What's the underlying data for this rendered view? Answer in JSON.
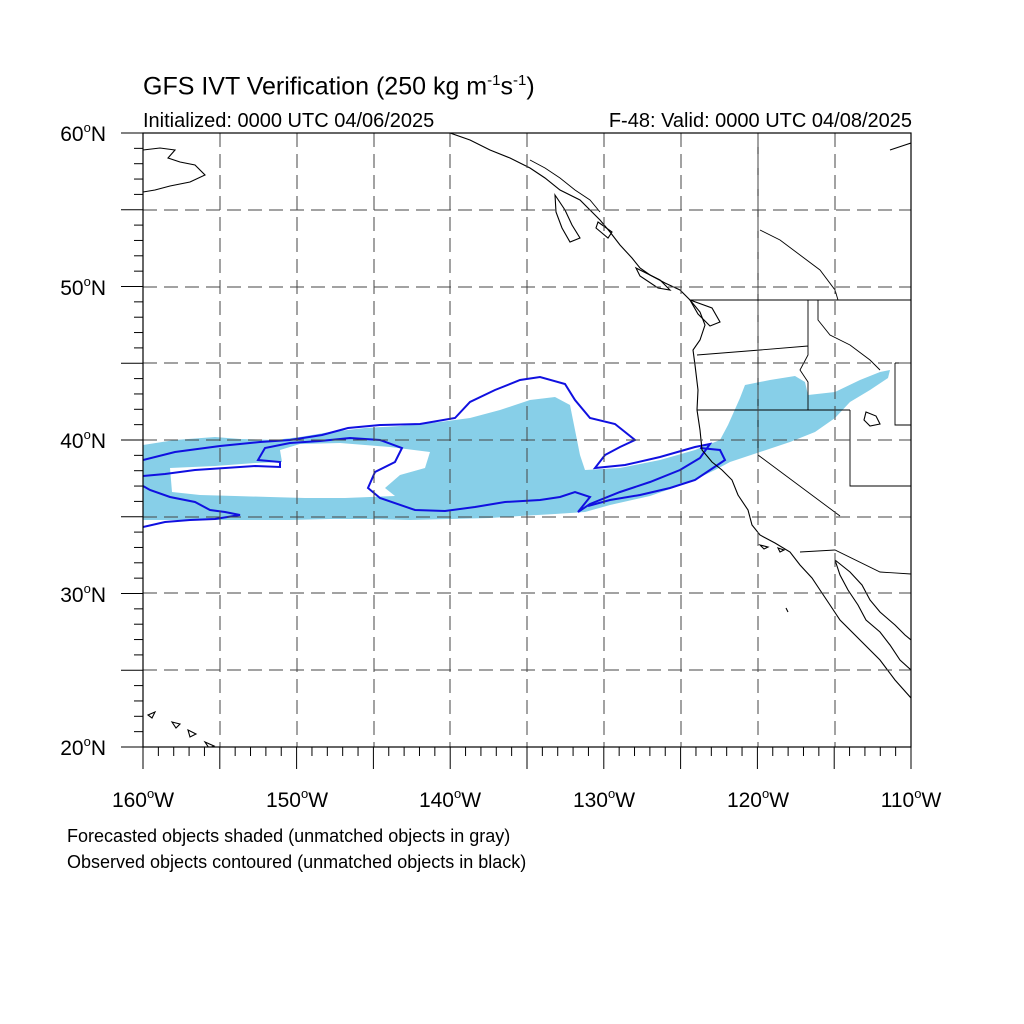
{
  "title": {
    "main": "GFS IVT Verification (250 kg m",
    "exp1": "-1",
    "mid": "s",
    "exp2": "-1",
    "end": ")"
  },
  "initialized": "Initialized: 0000 UTC 04/06/2025",
  "valid": "F-48: Valid: 0000 UTC 04/08/2025",
  "lat_labels": [
    {
      "value": "60",
      "suffix": "N"
    },
    {
      "value": "50",
      "suffix": "N"
    },
    {
      "value": "40",
      "suffix": "N"
    },
    {
      "value": "30",
      "suffix": "N"
    },
    {
      "value": "20",
      "suffix": "N"
    }
  ],
  "lon_labels": [
    {
      "value": "160",
      "suffix": "W"
    },
    {
      "value": "150",
      "suffix": "W"
    },
    {
      "value": "140",
      "suffix": "W"
    },
    {
      "value": "130",
      "suffix": "W"
    },
    {
      "value": "120",
      "suffix": "W"
    },
    {
      "value": "110",
      "suffix": "W"
    }
  ],
  "degree_symbol": "o",
  "footnotes": {
    "line1": "Forecasted objects shaded (unmatched objects in gray)",
    "line2": "Observed objects contoured (unmatched objects in black)"
  },
  "colors": {
    "forecast_fill": "#87cfe8",
    "observed_contour": "#1010e0",
    "coastline": "#000000",
    "grid": "#444444"
  },
  "map": {
    "projection": "cylindrical equidistant",
    "lat_range": [
      20,
      60
    ],
    "lon_range": [
      -160,
      -110
    ],
    "grid_spacing_deg": 5,
    "grid_style": "dashed"
  }
}
